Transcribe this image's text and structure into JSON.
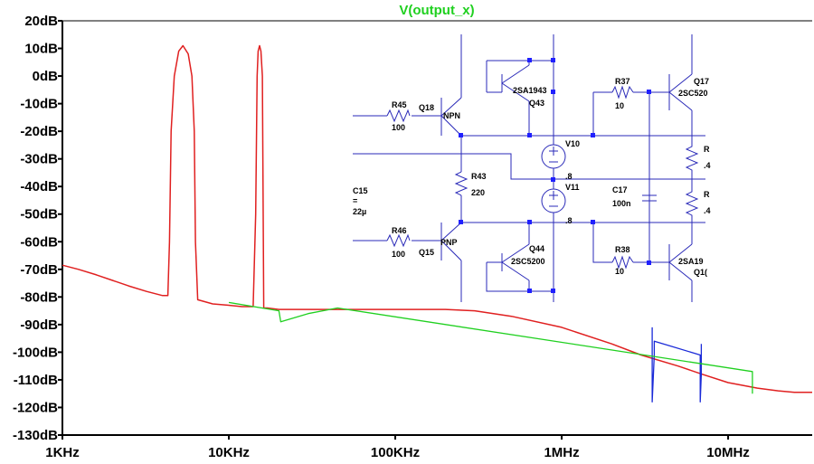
{
  "chart_data": {
    "type": "line",
    "title": "V(output_x)",
    "x_scale": "log",
    "xlim": [
      1000,
      32000000
    ],
    "ylim": [
      -130,
      20
    ],
    "x_ticks": [
      {
        "value": 1000,
        "label": "1KHz"
      },
      {
        "value": 10000,
        "label": "10KHz"
      },
      {
        "value": 100000,
        "label": "100KHz"
      },
      {
        "value": 1000000,
        "label": "1MHz"
      },
      {
        "value": 10000000,
        "label": "10MHz"
      }
    ],
    "y_ticks": [
      {
        "value": 20,
        "label": "20dB"
      },
      {
        "value": 10,
        "label": "10dB"
      },
      {
        "value": 0,
        "label": "0dB"
      },
      {
        "value": -10,
        "label": "-10dB"
      },
      {
        "value": -20,
        "label": "-20dB"
      },
      {
        "value": -30,
        "label": "-30dB"
      },
      {
        "value": -40,
        "label": "-40dB"
      },
      {
        "value": -50,
        "label": "-50dB"
      },
      {
        "value": -60,
        "label": "-60dB"
      },
      {
        "value": -70,
        "label": "-70dB"
      },
      {
        "value": -80,
        "label": "-80dB"
      },
      {
        "value": -90,
        "label": "-90dB"
      },
      {
        "value": -100,
        "label": "-100dB"
      },
      {
        "value": -110,
        "label": "-110dB"
      },
      {
        "value": -120,
        "label": "-120dB"
      },
      {
        "value": -130,
        "label": "-130dB"
      }
    ],
    "grid": false,
    "colors": {
      "trace_main": "#e02020",
      "trace_blue": "#1a2ad8",
      "trace_green": "#20d020",
      "title": "#20d020",
      "schematic": "#2a2ab8",
      "junction": "#2020ff"
    },
    "series": [
      {
        "color": "#e02020",
        "x": [
          1000,
          1250,
          1600,
          2000,
          2500,
          3200,
          4000,
          4300,
          4400,
          4500,
          4700,
          5000,
          5300,
          5700,
          6000,
          6200,
          6300,
          6500,
          8000,
          10000,
          12000,
          14000,
          14500,
          14800,
          15000,
          15300,
          15600,
          15900,
          16200,
          17000,
          20000,
          30000,
          50000,
          100000,
          200000,
          300000,
          500000,
          1000000,
          2000000,
          3000000,
          5000000,
          7000000,
          10000000,
          15000000,
          20000000,
          25000000,
          32000000
        ],
        "y": [
          -68.5,
          -70,
          -72,
          -74,
          -76,
          -78,
          -79.5,
          -79.5,
          -60,
          -20,
          0,
          9,
          11,
          8,
          0,
          -20,
          -60,
          -81,
          -82.5,
          -83,
          -83.5,
          -83.5,
          -50,
          0,
          9,
          11,
          9,
          0,
          -84,
          -84,
          -84.5,
          -84.5,
          -84.5,
          -84.5,
          -84.5,
          -85,
          -87,
          -91,
          -97,
          -101,
          -105,
          -108,
          -111,
          -113,
          -114,
          -114.5,
          -114.5
        ]
      },
      {
        "color": "#1a2ad8",
        "x": [
          3500000,
          3500000,
          3600000,
          3600000,
          6800000,
          6800000,
          6900000,
          6900000
        ],
        "y": [
          -91,
          -118,
          -101,
          -96,
          -101,
          -118,
          -108,
          -97
        ]
      },
      {
        "color": "#20d020",
        "x": [
          10000,
          20000,
          20500,
          30000,
          45000,
          14000000,
          14000000
        ],
        "y": [
          -82,
          -85,
          -89,
          -86,
          -84,
          -107,
          -115
        ]
      }
    ]
  },
  "schematic": {
    "labels": [
      "R45",
      "100",
      "Q18",
      "NPN",
      "2SA1943",
      "Q43",
      "R37",
      "10",
      "Q17",
      "2SC520",
      "V10",
      ".8",
      "V11",
      ".8",
      "R43",
      "220",
      "C15",
      "=",
      "22µ",
      "C17",
      "100n",
      "R46",
      "100",
      "PNP",
      "Q15",
      "Q44",
      "2SC5200",
      "R38",
      "10",
      "2SA19",
      "Q1(",
      "R",
      ".4",
      "R",
      ".4"
    ]
  }
}
